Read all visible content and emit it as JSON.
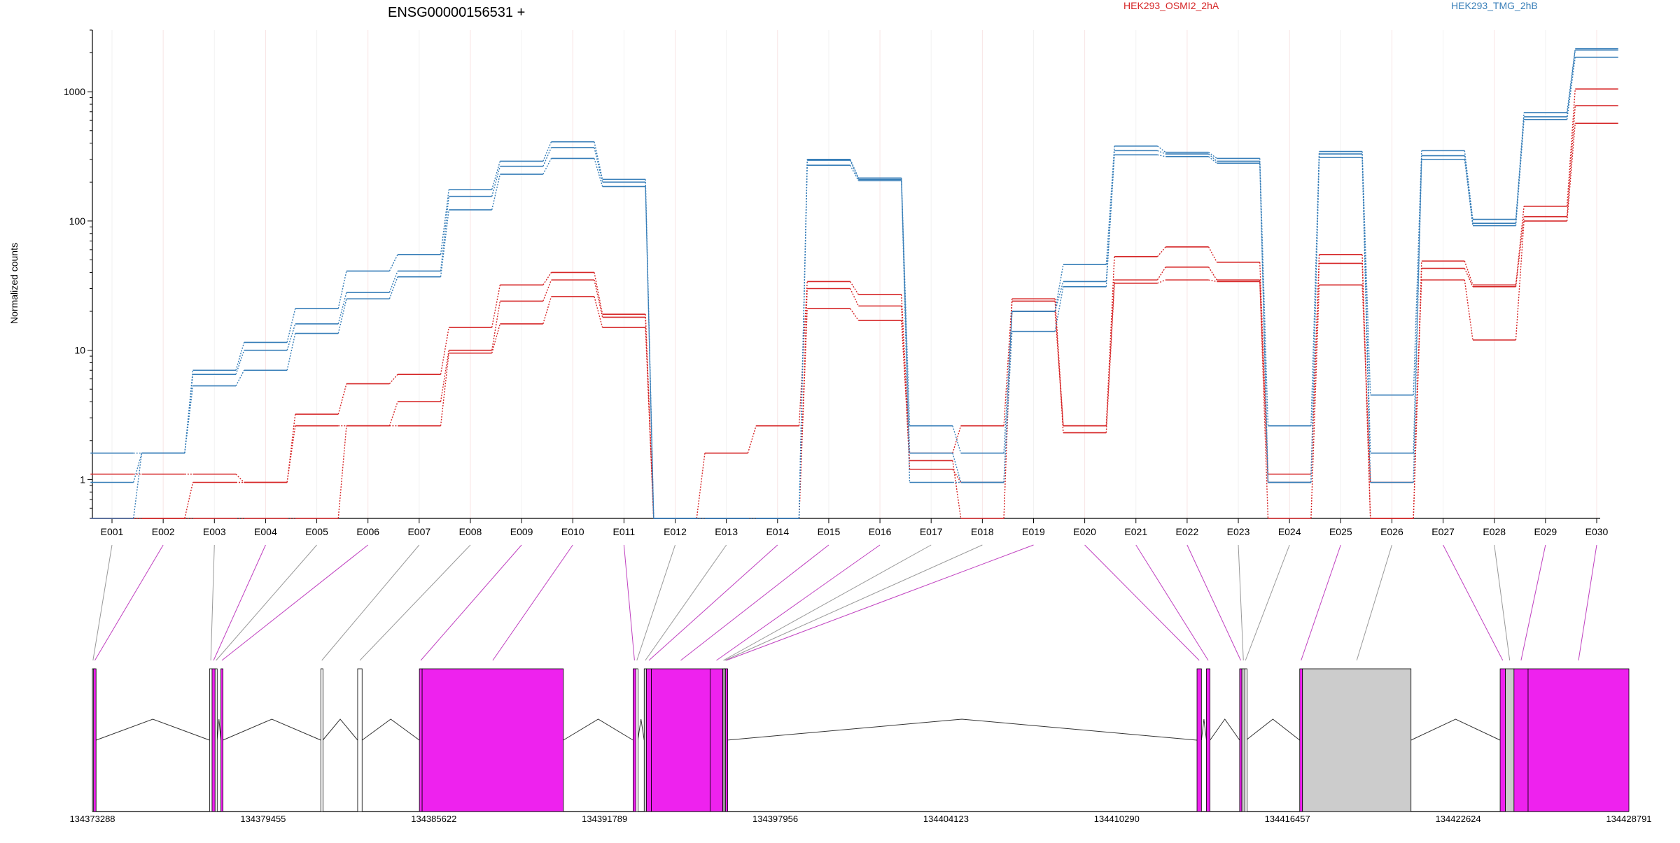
{
  "chart_data": {
    "type": "line",
    "title": "ENSG00000156531 +",
    "ylabel": "Normalized counts",
    "xlabel": "",
    "yscale": "log",
    "ylim": [
      0.5,
      3000
    ],
    "yticks": [
      {
        "value": 1,
        "label": "1"
      },
      {
        "value": 10,
        "label": "10"
      },
      {
        "value": 100,
        "label": "100"
      },
      {
        "value": 1000,
        "label": "1000"
      }
    ],
    "grid": "vertical",
    "legend": [
      {
        "name": "HEK293_OSMI2_2hA",
        "color": "#d62728"
      },
      {
        "name": "HEK293_TMG_2hB",
        "color": "#377eb8"
      }
    ],
    "categories": [
      "E001",
      "E002",
      "E003",
      "E004",
      "E005",
      "E006",
      "E007",
      "E008",
      "E009",
      "E010",
      "E011",
      "E012",
      "E013",
      "E014",
      "E015",
      "E016",
      "E017",
      "E018",
      "E019",
      "E020",
      "E021",
      "E022",
      "E023",
      "E024",
      "E025",
      "E026",
      "E027",
      "E028",
      "E029",
      "E030"
    ],
    "series": [
      {
        "group": "HEK293_OSMI2_2hA",
        "color": "#d62728",
        "values": [
          1.1,
          1.1,
          1.1,
          0.95,
          3.2,
          5.5,
          6.5,
          15,
          32,
          40,
          19,
          0.5,
          1.6,
          2.6,
          34,
          27,
          1.6,
          2.6,
          25,
          2.6,
          53,
          63,
          48,
          1.1,
          55,
          0.5,
          49,
          32,
          130,
          1050
        ]
      },
      {
        "group": "HEK293_OSMI2_2hA",
        "color": "#d62728",
        "values": [
          0.5,
          0.5,
          0.95,
          0.95,
          2.6,
          2.6,
          4,
          10,
          24,
          35,
          18,
          0.5,
          0.5,
          0.5,
          30,
          22,
          1.2,
          0.95,
          20,
          2.6,
          35,
          44,
          35,
          0.95,
          47,
          0.5,
          43,
          31,
          108,
          780
        ]
      },
      {
        "group": "HEK293_OSMI2_2hA",
        "color": "#d62728",
        "values": [
          0.5,
          0.5,
          0.5,
          0.5,
          0.5,
          2.6,
          2.6,
          9.5,
          16,
          26,
          15,
          0.5,
          0.5,
          0.5,
          21,
          17,
          1.4,
          0.5,
          24,
          2.3,
          33,
          35,
          34,
          0.5,
          32,
          0.95,
          35,
          12,
          100,
          570
        ]
      },
      {
        "group": "HEK293_TMG_2hB",
        "color": "#377eb8",
        "values": [
          1.6,
          1.6,
          7,
          11.5,
          21,
          41,
          55,
          175,
          290,
          410,
          210,
          0.5,
          0.5,
          0.5,
          300,
          215,
          2.6,
          1.6,
          20,
          46,
          380,
          340,
          305,
          2.6,
          345,
          4.5,
          350,
          103,
          690,
          2150
        ]
      },
      {
        "group": "HEK293_TMG_2hB",
        "color": "#377eb8",
        "values": [
          0.95,
          1.6,
          6.5,
          10,
          16,
          28,
          41,
          155,
          265,
          370,
          200,
          0.5,
          0.5,
          0.5,
          295,
          210,
          1.6,
          0.95,
          20,
          34,
          350,
          330,
          290,
          0.95,
          330,
          1.6,
          320,
          96,
          640,
          2100
        ]
      },
      {
        "group": "HEK293_TMG_2hB",
        "color": "#377eb8",
        "values": [
          0.5,
          1.6,
          5.3,
          7,
          13.5,
          25,
          37,
          122,
          230,
          305,
          185,
          0.5,
          0.5,
          0.5,
          270,
          205,
          0.95,
          0.95,
          14,
          31,
          325,
          315,
          280,
          0.95,
          310,
          0.95,
          300,
          92,
          610,
          1850
        ]
      }
    ],
    "gene_model": {
      "coordinate_ticks": [
        "134373288",
        "134379455",
        "134385622",
        "134391789",
        "134397956",
        "134404123",
        "134410290",
        "134416457",
        "134422624",
        "134428791"
      ],
      "highlight_color": "#ee22ee",
      "plain_color": "#cccccc",
      "exons": [
        {
          "id": "E001",
          "start": 134373288,
          "end": 134373330,
          "highlight": false,
          "filled": true
        },
        {
          "id": "E002",
          "start": 134373330,
          "end": 134373420,
          "highlight": true,
          "filled": true
        },
        {
          "id": "E003",
          "start": 134377520,
          "end": 134377610,
          "highlight": false,
          "filled": false
        },
        {
          "id": "E004",
          "start": 134377610,
          "end": 134377720,
          "highlight": true,
          "filled": true
        },
        {
          "id": "E005",
          "start": 134377720,
          "end": 134377790,
          "highlight": false,
          "filled": false
        },
        {
          "id": "E006",
          "start": 134377930,
          "end": 134378000,
          "highlight": true,
          "filled": true
        },
        {
          "id": "E007",
          "start": 134381540,
          "end": 134381610,
          "highlight": false,
          "filled": false
        },
        {
          "id": "E008",
          "start": 134382870,
          "end": 134383030,
          "highlight": false,
          "filled": false
        },
        {
          "id": "E009",
          "start": 134385100,
          "end": 134385200,
          "highlight": true,
          "filled": true
        },
        {
          "id": "E010",
          "start": 134385200,
          "end": 134390300,
          "highlight": true,
          "filled": true
        },
        {
          "id": "E011",
          "start": 134392820,
          "end": 134392920,
          "highlight": true,
          "filled": true
        },
        {
          "id": "E012",
          "start": 134392920,
          "end": 134392990,
          "highlight": false,
          "filled": false
        },
        {
          "id": "E013",
          "start": 134393220,
          "end": 134393300,
          "highlight": false,
          "filled": true
        },
        {
          "id": "E014",
          "start": 134393300,
          "end": 134393480,
          "highlight": true,
          "filled": true
        },
        {
          "id": "E015",
          "start": 134393480,
          "end": 134395600,
          "highlight": true,
          "filled": true
        },
        {
          "id": "E016",
          "start": 134395600,
          "end": 134396060,
          "highlight": true,
          "filled": true
        },
        {
          "id": "E017",
          "start": 134396060,
          "end": 134396100,
          "highlight": false,
          "filled": true
        },
        {
          "id": "E018",
          "start": 134396100,
          "end": 134396160,
          "highlight": false,
          "filled": true
        },
        {
          "id": "E019",
          "start": 134396160,
          "end": 134396200,
          "highlight": true,
          "filled": true
        },
        {
          "id": "E020",
          "start": 134413190,
          "end": 134413350,
          "highlight": true,
          "filled": true
        },
        {
          "id": "E021",
          "start": 134413530,
          "end": 134413660,
          "highlight": true,
          "filled": true
        },
        {
          "id": "E022",
          "start": 134414730,
          "end": 134414810,
          "highlight": true,
          "filled": true
        },
        {
          "id": "E023",
          "start": 134414810,
          "end": 134414920,
          "highlight": false,
          "filled": true
        },
        {
          "id": "E024",
          "start": 134414920,
          "end": 134414960,
          "highlight": false,
          "filled": false
        },
        {
          "id": "E025",
          "start": 134416900,
          "end": 134417000,
          "highlight": true,
          "filled": true
        },
        {
          "id": "E026",
          "start": 134417000,
          "end": 134420920,
          "highlight": false,
          "filled": true
        },
        {
          "id": "E027",
          "start": 134424140,
          "end": 134424330,
          "highlight": true,
          "filled": true
        },
        {
          "id": "E028",
          "start": 134424330,
          "end": 134424640,
          "highlight": false,
          "filled": true
        },
        {
          "id": "E029",
          "start": 134424640,
          "end": 134425150,
          "highlight": true,
          "filled": true
        },
        {
          "id": "E030",
          "start": 134425150,
          "end": 134428791,
          "highlight": true,
          "filled": true
        }
      ]
    }
  }
}
